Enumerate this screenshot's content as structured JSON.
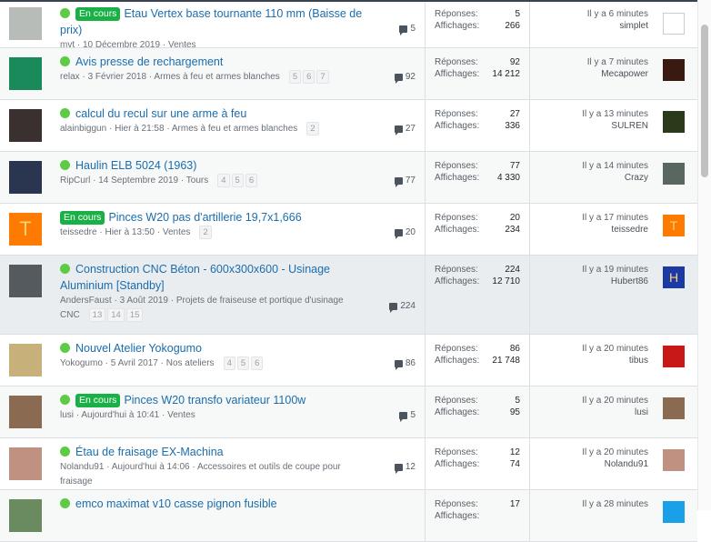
{
  "labels": {
    "replies": "Réponses:",
    "views": "Affichages:"
  },
  "threads": [
    {
      "badge": "En cours",
      "unread": true,
      "title": "Etau Vertex base tournante 110 mm (Baisse de prix)",
      "author": "mvt",
      "date": "10 Décembre 2019",
      "forum": "Ventes",
      "pages": [],
      "replies": "5",
      "views": "266",
      "last_time": "Il y a 6 minutes",
      "last_user": "simplet",
      "avatar_color": "#b8bcb8",
      "last_avatar_color": "#ffffff"
    },
    {
      "badge": "",
      "unread": true,
      "title": "Avis presse de rechargement",
      "author": "relax",
      "date": "3 Février 2018",
      "forum": "Armes à feu et armes blanches",
      "pages": [
        "5",
        "6",
        "7"
      ],
      "replies": "92",
      "views": "14 212",
      "last_time": "Il y a 7 minutes",
      "last_user": "Mecapower",
      "avatar_color": "#1a8a5a",
      "last_avatar_color": "#3a1a10"
    },
    {
      "badge": "",
      "unread": true,
      "title": "calcul du recul sur une arme à feu",
      "author": "alainbiggun",
      "date": "Hier à 21:58",
      "forum": "Armes à feu et armes blanches",
      "pages": [
        "2"
      ],
      "replies": "27",
      "views": "336",
      "last_time": "Il y a 13 minutes",
      "last_user": "SULREN",
      "avatar_color": "#3a3030",
      "last_avatar_color": "#2a3a1a"
    },
    {
      "badge": "",
      "unread": true,
      "title": "Haulin ELB 5024 (1963)",
      "author": "RipCurl",
      "date": "14 Septembre 2019",
      "forum": "Tours",
      "pages": [
        "4",
        "5",
        "6"
      ],
      "replies": "77",
      "views": "4 330",
      "last_time": "Il y a 14 minutes",
      "last_user": "Crazy",
      "avatar_color": "#2a3550",
      "last_avatar_color": "#5a6660"
    },
    {
      "badge": "En cours",
      "unread": false,
      "title": "Pinces W20 pas d'artillerie 19,7x1,666",
      "author": "teissedre",
      "date": "Hier à 13:50",
      "forum": "Ventes",
      "pages": [
        "2"
      ],
      "replies": "20",
      "views": "234",
      "last_time": "Il y a 17 minutes",
      "last_user": "teissedre",
      "avatar_letter": "T",
      "avatar_color": "#ff7a00",
      "last_avatar_letter": "T",
      "last_avatar_color": "#ff7a00"
    },
    {
      "badge": "",
      "unread": true,
      "title": "Construction CNC Béton - 600x300x600 - Usinage Aluminium [Standby]",
      "author": "AndersFaust",
      "date": "3 Août 2019",
      "forum": "Projets de fraiseuse et portique d'usinage CNC",
      "pages": [
        "13",
        "14",
        "15"
      ],
      "replies": "224",
      "views": "12 710",
      "last_time": "Il y a 19 minutes",
      "last_user": "Hubert86",
      "avatar_color": "#555a5e",
      "last_avatar_letter": "H",
      "last_avatar_color": "#1c3aa6"
    },
    {
      "badge": "",
      "unread": true,
      "title": "Nouvel Atelier Yokogumo",
      "author": "Yokogumo",
      "date": "5 Avril 2017",
      "forum": "Nos ateliers",
      "pages": [
        "4",
        "5",
        "6"
      ],
      "replies": "86",
      "views": "21 748",
      "last_time": "Il y a 20 minutes",
      "last_user": "tibus",
      "avatar_color": "#c8b07a",
      "last_avatar_color": "#c81818"
    },
    {
      "badge": "En cours",
      "unread": true,
      "title": "Pinces W20 transfo variateur 1100w",
      "author": "lusi",
      "date": "Aujourd'hui à 10:41",
      "forum": "Ventes",
      "pages": [],
      "replies": "5",
      "views": "95",
      "last_time": "Il y a 20 minutes",
      "last_user": "lusi",
      "avatar_color": "#8a6a50",
      "last_avatar_color": "#8a6a50"
    },
    {
      "badge": "",
      "unread": true,
      "title": "Étau de fraisage EX-Machina",
      "author": "Nolandu91",
      "date": "Aujourd'hui à 14:06",
      "forum": "Accessoires et outils de coupe pour fraisage",
      "pages": [],
      "replies": "12",
      "views": "74",
      "last_time": "Il y a 20 minutes",
      "last_user": "Nolandu91",
      "avatar_color": "#c09080",
      "last_avatar_color": "#c09080"
    },
    {
      "badge": "",
      "unread": true,
      "title": "emco maximat v10 casse pignon fusible",
      "author": "",
      "date": "",
      "forum": "",
      "pages": [],
      "replies": "17",
      "views": "",
      "last_time": "Il y a 28 minutes",
      "last_user": "",
      "avatar_color": "#6a8a60",
      "last_avatar_color": "#1aa0e8"
    }
  ]
}
